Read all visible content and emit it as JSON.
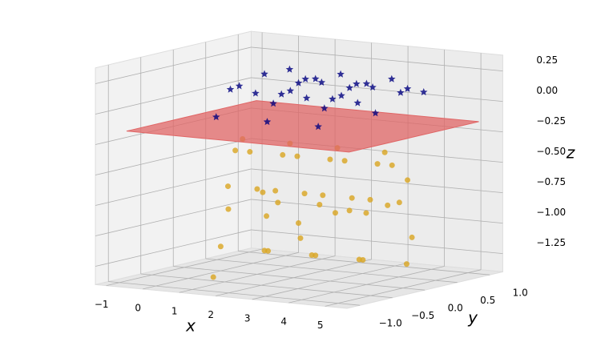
{
  "chart_data": {
    "type": "scatter3d",
    "xlabel": "x",
    "ylabel": "y",
    "zlabel": "z",
    "xlim": [
      -1.3,
      5.6
    ],
    "ylim": [
      -1.2,
      1.2
    ],
    "zlim": [
      -1.4,
      0.38
    ],
    "xticks": [
      {
        "value": -1,
        "label": "−1"
      },
      0,
      1,
      2,
      3,
      4,
      5
    ],
    "yticks": [
      {
        "value": -1.0,
        "label": "−1.0"
      },
      {
        "value": -0.5,
        "label": "−0.5"
      },
      {
        "value": 0.0,
        "label": "0.0"
      },
      0.5,
      {
        "value": 1.0,
        "label": "1.0"
      }
    ],
    "zticks": [
      0.25,
      {
        "value": 0.0,
        "label": "0.00"
      },
      {
        "value": -0.25,
        "label": "−0.25"
      },
      {
        "value": -0.5,
        "label": "−0.50"
      },
      {
        "value": -0.75,
        "label": "−0.75"
      },
      {
        "value": -1.0,
        "label": "−1.00"
      },
      {
        "value": -1.25,
        "label": "−1.25"
      }
    ],
    "grid": true,
    "series": [
      {
        "marker": "star",
        "color": "#000080",
        "x": [
          0.6,
          0.8,
          1.0,
          1.2,
          1.4,
          1.6,
          1.8,
          0.9,
          1.3,
          1.7,
          2.0,
          2.2,
          2.4,
          2.6,
          2.8,
          3.0,
          3.2,
          2.3,
          2.7,
          3.1,
          3.4,
          3.6,
          3.8,
          4.0,
          4.2,
          4.4,
          4.6,
          3.7,
          4.1,
          4.5
        ],
        "y": [
          0.2,
          -0.3,
          0.5,
          0.0,
          -0.5,
          0.3,
          -0.2,
          0.8,
          -0.8,
          0.6,
          0.2,
          -0.3,
          0.5,
          0.0,
          -0.5,
          0.3,
          -0.2,
          0.8,
          -0.8,
          0.6,
          0.2,
          -0.3,
          0.5,
          0.0,
          -0.5,
          0.3,
          -0.2,
          0.8,
          -0.8,
          0.6
        ],
        "z": [
          0.05,
          0.15,
          0.22,
          0.25,
          0.22,
          0.15,
          0.05,
          0.1,
          0.0,
          0.12,
          0.05,
          0.15,
          0.22,
          0.25,
          0.22,
          0.15,
          0.05,
          0.1,
          0.0,
          0.12,
          0.05,
          0.15,
          0.22,
          0.25,
          0.22,
          0.15,
          0.05,
          0.1,
          0.0,
          0.12
        ]
      },
      {
        "marker": "circle",
        "color": "#daa520",
        "x": [
          0.0,
          0.2,
          0.4,
          0.6,
          0.8,
          1.0,
          1.2,
          1.3,
          1.5,
          1.7,
          1.9,
          2.1,
          2.3,
          2.5,
          2.6,
          2.8,
          3.0,
          3.2,
          3.4,
          3.6,
          3.8,
          3.9,
          4.1,
          4.3,
          4.5,
          4.7,
          4.9,
          5.1,
          0.5,
          1.1,
          1.6,
          2.4,
          3.1,
          3.5,
          4.0,
          4.6,
          0.9,
          2.0,
          2.9,
          4.4,
          1.4,
          3.7
        ],
        "y": [
          0,
          0,
          0,
          0,
          0,
          0,
          0,
          0,
          0,
          0,
          0,
          0,
          0,
          0,
          0,
          0,
          0,
          0,
          0,
          0,
          0,
          0,
          0,
          0,
          0,
          0,
          0,
          0,
          0.6,
          -0.5,
          0.3,
          -0.7,
          0.5,
          -0.2,
          0.7,
          -0.6,
          0.2,
          0.4,
          -0.4,
          0.1,
          -0.9,
          0.8
        ],
        "z": [
          -1.2,
          -0.7,
          -0.4,
          -0.3,
          -0.4,
          -0.7,
          -1.2,
          -1.2,
          -0.7,
          -0.4,
          -0.3,
          -0.4,
          -0.7,
          -1.2,
          -1.2,
          -0.7,
          -0.4,
          -0.3,
          -0.4,
          -0.7,
          -1.2,
          -1.2,
          -0.7,
          -0.4,
          -0.3,
          -0.4,
          -0.7,
          -1.2,
          -0.9,
          -0.8,
          -1.0,
          -0.6,
          -0.9,
          -0.8,
          -1.1,
          -0.7,
          -0.95,
          -0.85,
          -1.0,
          -0.75,
          -1.3,
          -0.65
        ]
      }
    ],
    "plane": {
      "z": -0.15,
      "x": [
        -0.8,
        5.3
      ],
      "y": [
        -1.0,
        1.0
      ],
      "color": "#e06666"
    }
  }
}
